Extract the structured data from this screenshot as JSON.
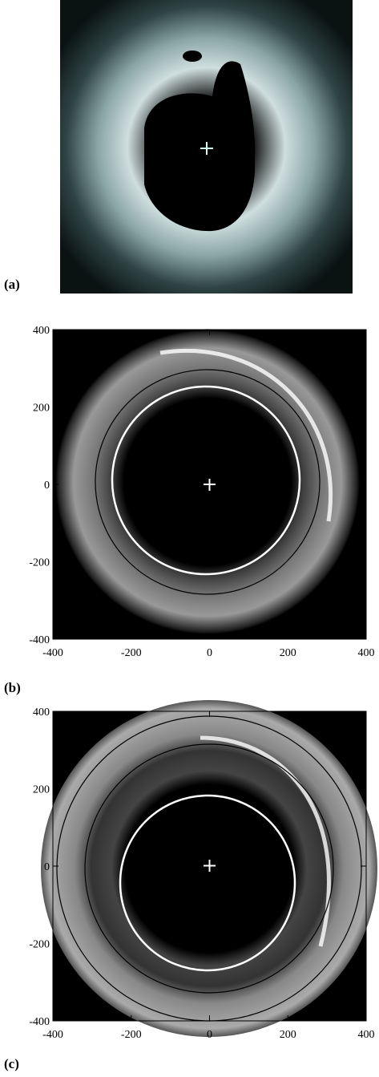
{
  "panels": [
    {
      "label": "(a)"
    },
    {
      "label": "(b)",
      "xlim": [
        -400,
        400
      ],
      "ylim": [
        -400,
        400
      ],
      "xticks": [
        -400,
        -200,
        0,
        200,
        400
      ],
      "yticks": [
        -400,
        -200,
        0,
        200,
        400
      ]
    },
    {
      "label": "(c)",
      "xlim": [
        -400,
        400
      ],
      "ylim": [
        -400,
        400
      ],
      "xticks": [
        -400,
        -200,
        0,
        200,
        400
      ],
      "yticks": [
        -400,
        -200,
        0,
        200,
        400
      ]
    }
  ]
}
